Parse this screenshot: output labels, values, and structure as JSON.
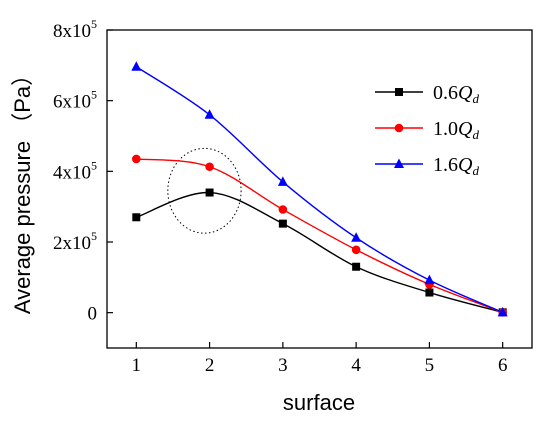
{
  "chart_data": {
    "type": "line",
    "title": "",
    "xlabel": "surface",
    "ylabel": "Average pressure （Pa）",
    "x": [
      1,
      2,
      3,
      4,
      5,
      6
    ],
    "xlim": [
      0.6,
      6.4
    ],
    "ylim": [
      -100000,
      800000
    ],
    "x_ticks": [
      "1",
      "2",
      "3",
      "4",
      "5",
      "6"
    ],
    "y_ticks": [
      {
        "value": 0,
        "base": "0",
        "exp": ""
      },
      {
        "value": 200000,
        "base": "2x10",
        "exp": "5"
      },
      {
        "value": 400000,
        "base": "4x10",
        "exp": "5"
      },
      {
        "value": 600000,
        "base": "6x10",
        "exp": "5"
      },
      {
        "value": 800000,
        "base": "8x10",
        "exp": "5"
      }
    ],
    "grid": false,
    "legend_position": "top-right",
    "series": [
      {
        "name": "0.6Q_d",
        "label_num": "0.6",
        "label_var": "Q",
        "label_sub": "d",
        "color": "#000000",
        "marker": "square",
        "values": [
          270000,
          340000,
          252000,
          130000,
          57000,
          1000
        ]
      },
      {
        "name": "1.0Q_d",
        "label_num": "1.0",
        "label_var": "Q",
        "label_sub": "d",
        "color": "#ff0000",
        "marker": "circle",
        "values": [
          435000,
          413000,
          292000,
          178000,
          80000,
          1000
        ]
      },
      {
        "name": "1.6Q_d",
        "label_num": "1.6",
        "label_var": "Q",
        "label_sub": "d",
        "color": "#0000ff",
        "marker": "triangle",
        "values": [
          696000,
          560000,
          370000,
          212000,
          92000,
          1000
        ]
      }
    ],
    "annotations": [
      {
        "type": "dotted-ellipse",
        "center": [
          1.93,
          345000
        ],
        "rx_data": 0.5,
        "ry_data": 120000
      }
    ]
  }
}
